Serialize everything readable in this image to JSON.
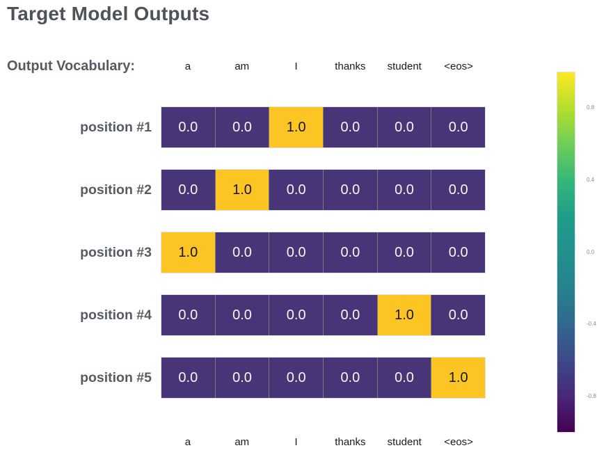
{
  "title": "Target Model Outputs",
  "vocab_label": "Output Vocabulary:",
  "colors": {
    "cell_low_bg": "#473577",
    "cell_high_bg": "#fcc524",
    "cell_low_text": "#f7f7f7",
    "cell_high_text": "#141414",
    "title_text": "#4d5359",
    "row_label_text": "#555c63",
    "colorbar_tick_text": "#8a8a8a"
  },
  "chart_data": {
    "type": "heatmap",
    "title": "Target Model Outputs",
    "columns": [
      "a",
      "am",
      "I",
      "thanks",
      "student",
      "<eos>"
    ],
    "rows": [
      {
        "label": "position #1",
        "values": [
          0.0,
          0.0,
          1.0,
          0.0,
          0.0,
          0.0
        ]
      },
      {
        "label": "position #2",
        "values": [
          0.0,
          1.0,
          0.0,
          0.0,
          0.0,
          0.0
        ]
      },
      {
        "label": "position #3",
        "values": [
          1.0,
          0.0,
          0.0,
          0.0,
          0.0,
          0.0
        ]
      },
      {
        "label": "position #4",
        "values": [
          0.0,
          0.0,
          0.0,
          0.0,
          1.0,
          0.0
        ]
      },
      {
        "label": "position #5",
        "values": [
          0.0,
          0.0,
          0.0,
          0.0,
          0.0,
          1.0
        ]
      }
    ],
    "value_format_decimals": 1,
    "legend_position": "right",
    "colorbar": {
      "colormap": "viridis",
      "range": [
        -1,
        1
      ],
      "ticks": [
        0.8,
        0.4,
        0.0,
        -0.4,
        -0.8
      ]
    }
  }
}
